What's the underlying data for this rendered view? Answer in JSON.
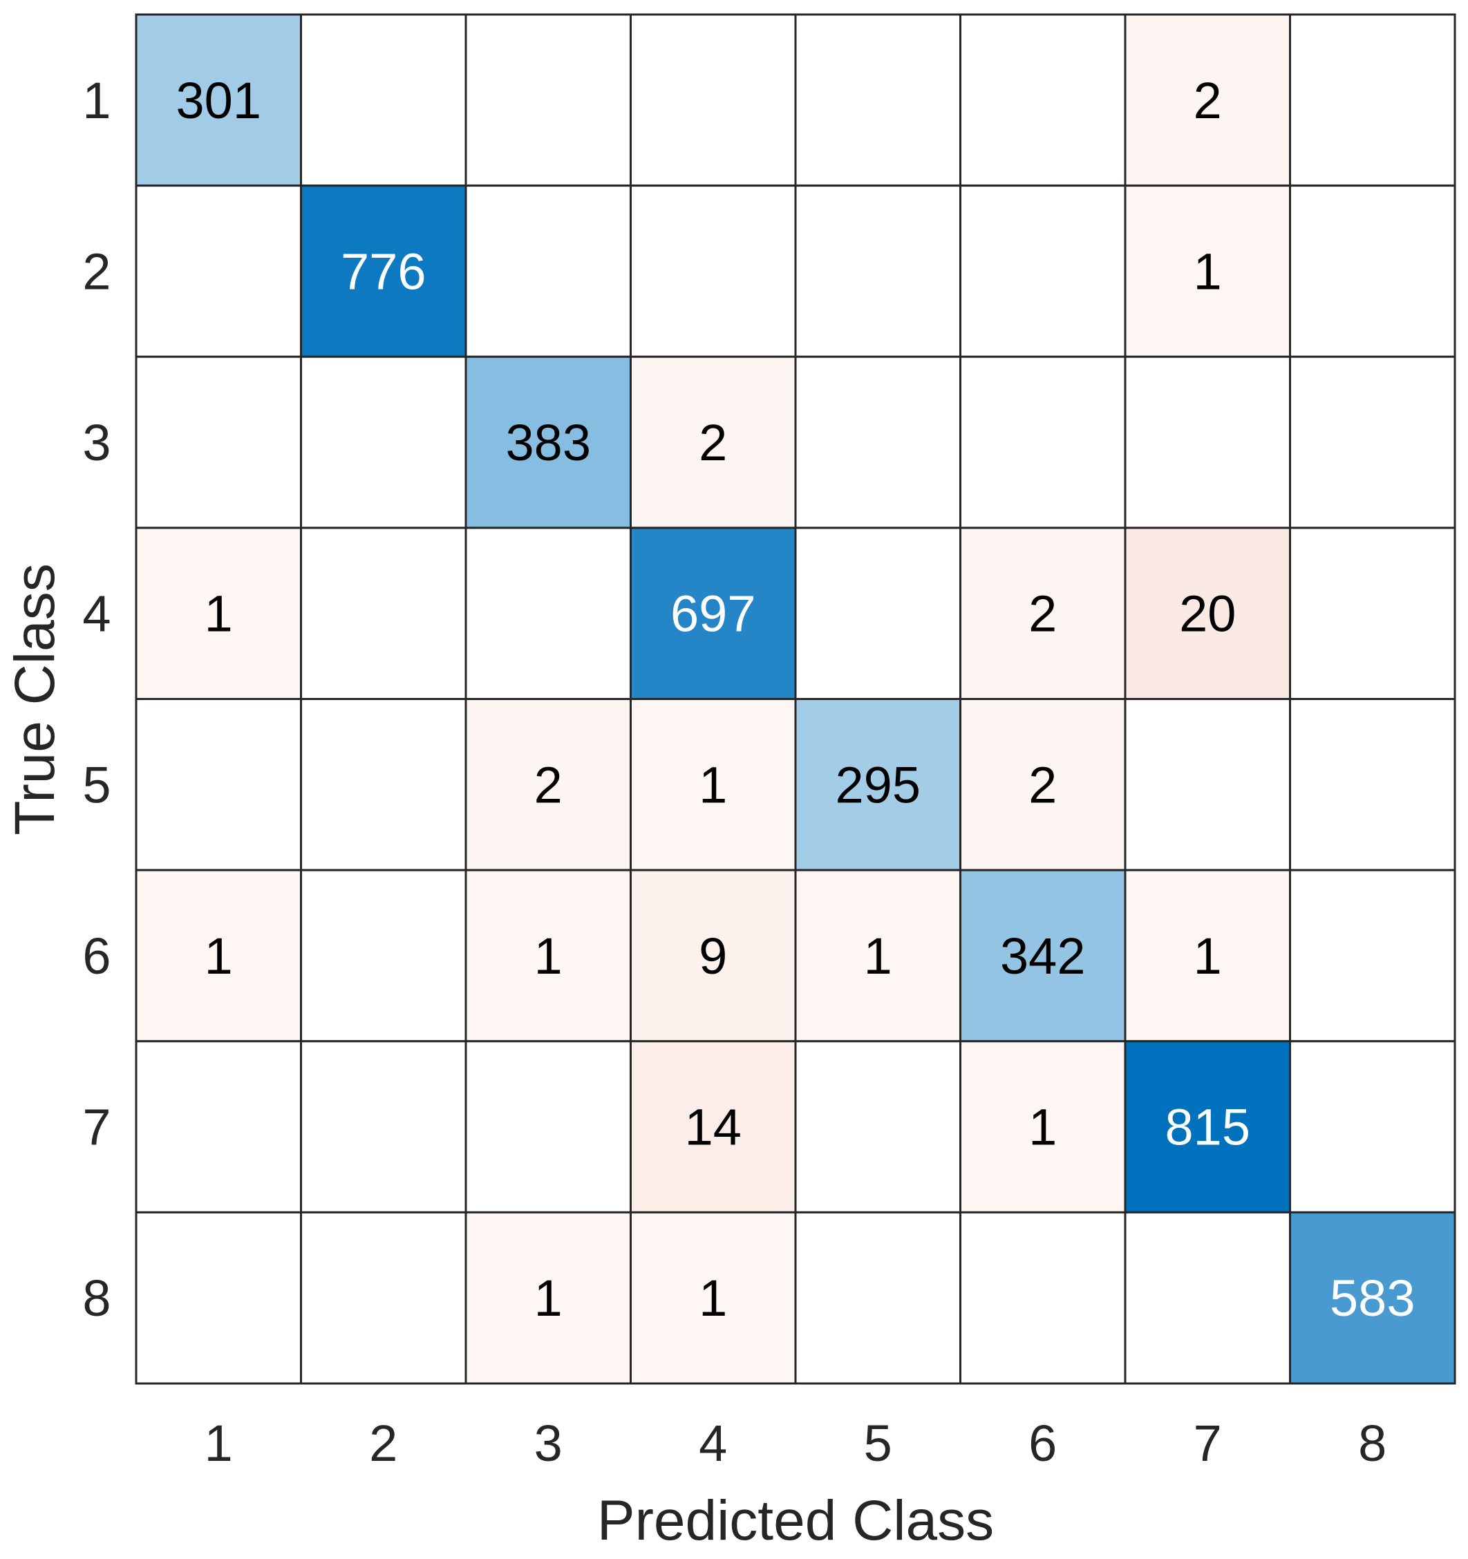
{
  "chart_data": {
    "type": "heatmap",
    "title": "",
    "xlabel": "Predicted Class",
    "ylabel": "True Class",
    "x_categories": [
      "1",
      "2",
      "3",
      "4",
      "5",
      "6",
      "7",
      "8"
    ],
    "y_categories": [
      "1",
      "2",
      "3",
      "4",
      "5",
      "6",
      "7",
      "8"
    ],
    "matrix": [
      [
        301,
        0,
        0,
        0,
        0,
        0,
        2,
        0
      ],
      [
        0,
        776,
        0,
        0,
        0,
        0,
        1,
        0
      ],
      [
        0,
        0,
        383,
        2,
        0,
        0,
        0,
        0
      ],
      [
        1,
        0,
        0,
        697,
        0,
        2,
        20,
        0
      ],
      [
        0,
        0,
        2,
        1,
        295,
        2,
        0,
        0
      ],
      [
        1,
        0,
        1,
        9,
        1,
        342,
        1,
        0
      ],
      [
        0,
        0,
        0,
        14,
        0,
        1,
        815,
        0
      ],
      [
        0,
        0,
        1,
        1,
        0,
        0,
        0,
        583
      ]
    ],
    "zero_cells_blank": true,
    "colors": {
      "diagonal_max": "#0072bd",
      "diagonal_min": "#ffffff",
      "offdiagonal_max": "#d95319",
      "offdiagonal_min": "#ffffff",
      "grid": "#262626",
      "text_dark": "#000000",
      "text_light": "#ffffff"
    }
  }
}
